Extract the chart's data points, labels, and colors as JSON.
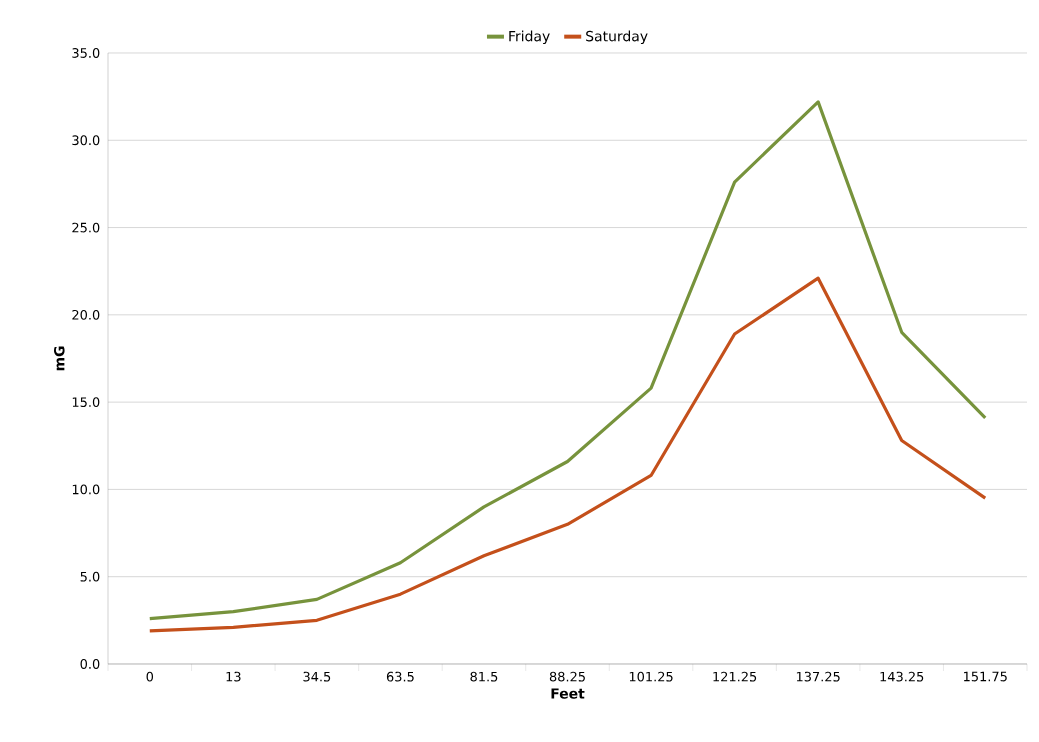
{
  "chart_data": {
    "type": "line",
    "xlabel": "Feet",
    "ylabel": "mG",
    "categories": [
      "0",
      "13",
      "34.5",
      "63.5",
      "81.5",
      "88.25",
      "101.25",
      "121.25",
      "137.25",
      "143.25",
      "151.75"
    ],
    "series": [
      {
        "name": "Friday",
        "color": "#77933c",
        "values": [
          2.6,
          3.0,
          3.7,
          5.8,
          9.0,
          11.6,
          15.8,
          27.6,
          32.2,
          19.0,
          14.1
        ]
      },
      {
        "name": "Saturday",
        "color": "#c4501b",
        "values": [
          1.9,
          2.1,
          2.5,
          4.0,
          6.2,
          8.0,
          10.8,
          18.9,
          22.1,
          12.8,
          9.5
        ]
      }
    ],
    "ylim": [
      0,
      35
    ],
    "yticks": [
      {
        "value": 0,
        "label": "0.0"
      },
      {
        "value": 5,
        "label": "5.0"
      },
      {
        "value": 10,
        "label": "10.0"
      },
      {
        "value": 15,
        "label": "15.0"
      },
      {
        "value": 20,
        "label": "20.0"
      },
      {
        "value": 25,
        "label": "25.0"
      },
      {
        "value": 30,
        "label": "30.0"
      },
      {
        "value": 35,
        "label": "35.0"
      }
    ],
    "grid": "y",
    "legend": "top",
    "marker": "none",
    "line_style": "solid"
  }
}
